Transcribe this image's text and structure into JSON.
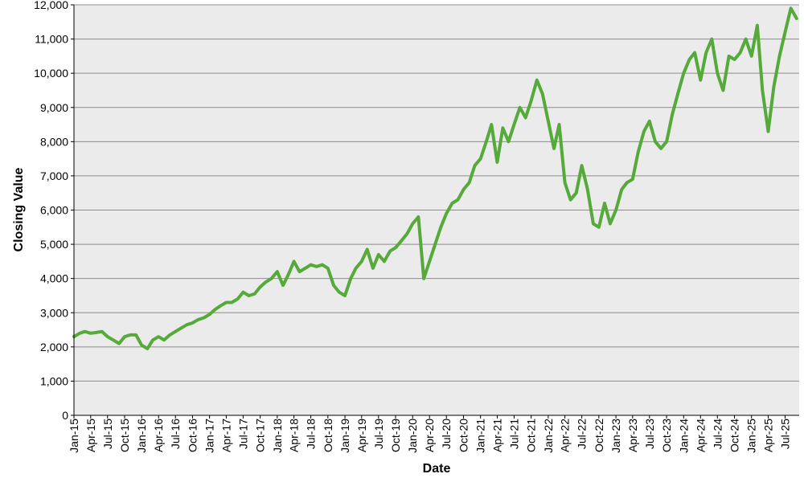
{
  "chart_data": {
    "type": "line",
    "title": "",
    "xlabel": "Date",
    "ylabel": "Closing Value",
    "ylim": [
      0,
      12000
    ],
    "yticks": [
      0,
      1000,
      2000,
      3000,
      4000,
      5000,
      6000,
      7000,
      8000,
      9000,
      10000,
      11000,
      12000
    ],
    "ytick_labels": [
      "0",
      "1,000",
      "2,000",
      "3,000",
      "4,000",
      "5,000",
      "6,000",
      "7,000",
      "8,000",
      "9,000",
      "10,000",
      "11,000",
      "12,000"
    ],
    "xlim": [
      "2015-01-01",
      "2025-09-15"
    ],
    "xtick_labels": [
      "Jan-15",
      "Apr-15",
      "Jul-15",
      "Oct-15",
      "Jan-16",
      "Apr-16",
      "Jul-16",
      "Oct-16",
      "Jan-17",
      "Apr-17",
      "Jul-17",
      "Oct-17",
      "Jan-18",
      "Apr-18",
      "Jul-18",
      "Oct-18",
      "Jan-19",
      "Apr-19",
      "Jul-19",
      "Oct-19",
      "Jan-20",
      "Apr-20",
      "Jul-20",
      "Oct-20",
      "Jan-21",
      "Apr-21",
      "Jul-21",
      "Oct-21",
      "Jan-22",
      "Apr-22",
      "Jul-22",
      "Oct-22",
      "Jan-23",
      "Apr-23",
      "Jul-23",
      "Oct-23",
      "Jan-24",
      "Apr-24",
      "Jul-24",
      "Oct-24",
      "Jan-25",
      "Apr-25",
      "Jul-25"
    ],
    "xtick_dates": [
      "2015-01-01",
      "2015-04-01",
      "2015-07-01",
      "2015-10-01",
      "2016-01-01",
      "2016-04-01",
      "2016-07-01",
      "2016-10-01",
      "2017-01-01",
      "2017-04-01",
      "2017-07-01",
      "2017-10-01",
      "2018-01-01",
      "2018-04-01",
      "2018-07-01",
      "2018-10-01",
      "2019-01-01",
      "2019-04-01",
      "2019-07-01",
      "2019-10-01",
      "2020-01-01",
      "2020-04-01",
      "2020-07-01",
      "2020-10-01",
      "2021-01-01",
      "2021-04-01",
      "2021-07-01",
      "2021-10-01",
      "2022-01-01",
      "2022-04-01",
      "2022-07-01",
      "2022-10-01",
      "2023-01-01",
      "2023-04-01",
      "2023-07-01",
      "2023-10-01",
      "2024-01-01",
      "2024-04-01",
      "2024-07-01",
      "2024-10-01",
      "2025-01-01",
      "2025-04-01",
      "2025-07-01"
    ],
    "grid": true,
    "legend": "none",
    "colors": {
      "series": "#55aa3a",
      "plot_bg": "#ebebeb",
      "grid": "#8c8c8c"
    },
    "series": [
      {
        "x": [
          "2015-01-01",
          "2015-02-01",
          "2015-03-01",
          "2015-04-01",
          "2015-05-01",
          "2015-06-01",
          "2015-07-01",
          "2015-08-01",
          "2015-09-01",
          "2015-10-01",
          "2015-11-01",
          "2015-12-01",
          "2016-01-01",
          "2016-02-01",
          "2016-03-01",
          "2016-04-01",
          "2016-05-01",
          "2016-06-01",
          "2016-07-01",
          "2016-08-01",
          "2016-09-01",
          "2016-10-01",
          "2016-11-01",
          "2016-12-01",
          "2017-01-01",
          "2017-02-01",
          "2017-03-01",
          "2017-04-01",
          "2017-05-01",
          "2017-06-01",
          "2017-07-01",
          "2017-08-01",
          "2017-09-01",
          "2017-10-01",
          "2017-11-01",
          "2017-12-01",
          "2018-01-01",
          "2018-02-01",
          "2018-03-01",
          "2018-04-01",
          "2018-05-01",
          "2018-06-01",
          "2018-07-01",
          "2018-08-01",
          "2018-09-01",
          "2018-10-01",
          "2018-11-01",
          "2018-12-01",
          "2019-01-01",
          "2019-02-01",
          "2019-03-01",
          "2019-04-01",
          "2019-05-01",
          "2019-06-01",
          "2019-07-01",
          "2019-08-01",
          "2019-09-01",
          "2019-10-01",
          "2019-11-01",
          "2019-12-01",
          "2020-01-01",
          "2020-02-01",
          "2020-03-01",
          "2020-04-01",
          "2020-05-01",
          "2020-06-01",
          "2020-07-01",
          "2020-08-01",
          "2020-09-01",
          "2020-10-01",
          "2020-11-01",
          "2020-12-01",
          "2021-01-01",
          "2021-02-01",
          "2021-03-01",
          "2021-04-01",
          "2021-05-01",
          "2021-06-01",
          "2021-07-01",
          "2021-08-01",
          "2021-09-01",
          "2021-10-01",
          "2021-11-01",
          "2021-12-01",
          "2022-01-01",
          "2022-02-01",
          "2022-03-01",
          "2022-04-01",
          "2022-05-01",
          "2022-06-01",
          "2022-07-01",
          "2022-08-01",
          "2022-09-01",
          "2022-10-01",
          "2022-11-01",
          "2022-12-01",
          "2023-01-01",
          "2023-02-01",
          "2023-03-01",
          "2023-04-01",
          "2023-05-01",
          "2023-06-01",
          "2023-07-01",
          "2023-08-01",
          "2023-09-01",
          "2023-10-01",
          "2023-11-01",
          "2023-12-01",
          "2024-01-01",
          "2024-02-01",
          "2024-03-01",
          "2024-04-01",
          "2024-05-01",
          "2024-06-01",
          "2024-07-01",
          "2024-08-01",
          "2024-09-01",
          "2024-10-01",
          "2024-11-01",
          "2024-12-01",
          "2025-01-01",
          "2025-02-01",
          "2025-03-01",
          "2025-04-01",
          "2025-05-01",
          "2025-06-01",
          "2025-07-01",
          "2025-08-01",
          "2025-09-01"
        ],
        "y": [
          2300,
          2400,
          2450,
          2400,
          2420,
          2450,
          2300,
          2200,
          2100,
          2300,
          2350,
          2350,
          2050,
          1950,
          2200,
          2300,
          2200,
          2350,
          2450,
          2550,
          2650,
          2700,
          2800,
          2850,
          2950,
          3100,
          3200,
          3300,
          3300,
          3400,
          3600,
          3500,
          3550,
          3750,
          3900,
          4000,
          4200,
          3800,
          4100,
          4500,
          4200,
          4300,
          4400,
          4350,
          4400,
          4300,
          3800,
          3600,
          3500,
          4000,
          4300,
          4500,
          4850,
          4300,
          4700,
          4500,
          4800,
          4900,
          5100,
          5300,
          5600,
          5800,
          4000,
          4500,
          5000,
          5500,
          5900,
          6200,
          6300,
          6600,
          6800,
          7300,
          7500,
          8000,
          8500,
          7400,
          8400,
          8000,
          8500,
          9000,
          8700,
          9200,
          9800,
          9400,
          8600,
          7800,
          8500,
          6800,
          6300,
          6500,
          7300,
          6600,
          5600,
          5500,
          6200,
          5600,
          6000,
          6600,
          6800,
          6900,
          7700,
          8300,
          8600,
          8000,
          7800,
          8000,
          8800,
          9400,
          10000,
          10400,
          10600,
          9800,
          10600,
          11000,
          10000,
          9500,
          10500,
          10400,
          10600,
          11000,
          10500,
          11400,
          9500,
          8300,
          9600,
          10500,
          11200,
          11900,
          11600
        ]
      }
    ]
  }
}
